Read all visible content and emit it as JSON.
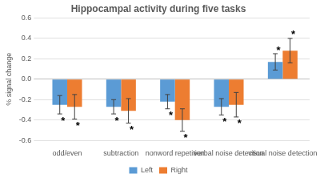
{
  "chart_data": {
    "type": "bar",
    "title": "Hippocampal activity during five tasks",
    "y_label": "% signal change",
    "categories": [
      "odd/even",
      "subtraction",
      "nonword repetition",
      "verbal noise detection",
      "visual noise detection"
    ],
    "series": [
      {
        "name": "Left",
        "color": "#5b9bd5",
        "values": [
          -0.25,
          -0.27,
          -0.22,
          -0.27,
          0.17
        ],
        "errors": [
          0.09,
          0.07,
          0.07,
          0.08,
          0.08
        ],
        "significance": [
          "*",
          "*",
          "*",
          "*",
          "*"
        ]
      },
      {
        "name": "Right",
        "color": "#ed7d31",
        "values": [
          -0.27,
          -0.31,
          -0.4,
          -0.25,
          0.28
        ],
        "errors": [
          0.12,
          0.12,
          0.11,
          0.12,
          0.12
        ],
        "significance": [
          "*",
          "*",
          "*",
          "*",
          "*"
        ]
      }
    ],
    "ylim": [
      -0.6,
      0.6
    ],
    "yticks": [
      -0.6,
      -0.4,
      -0.2,
      {
        "value": 0,
        "label": "0.0"
      },
      0.2,
      0.4,
      0.6
    ],
    "grid": true,
    "legend": "bottom"
  }
}
